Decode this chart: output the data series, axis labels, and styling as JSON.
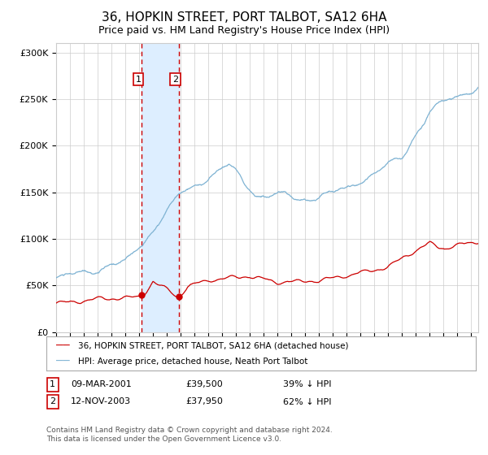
{
  "title": "36, HOPKIN STREET, PORT TALBOT, SA12 6HA",
  "subtitle": "Price paid vs. HM Land Registry's House Price Index (HPI)",
  "title_fontsize": 11,
  "subtitle_fontsize": 9,
  "hpi_color": "#7fb3d3",
  "price_color": "#cc0000",
  "marker_color": "#cc0000",
  "bg_color": "#ffffff",
  "grid_color": "#cccccc",
  "shade_color": "#ddeeff",
  "dashed_color": "#cc0000",
  "ylim": [
    0,
    310000
  ],
  "yticks": [
    0,
    50000,
    100000,
    150000,
    200000,
    250000,
    300000
  ],
  "ytick_labels": [
    "£0",
    "£50K",
    "£100K",
    "£150K",
    "£200K",
    "£250K",
    "£300K"
  ],
  "sale1_year": 2001.19,
  "sale1_price": 39500,
  "sale2_year": 2003.87,
  "sale2_price": 37950,
  "legend_line1": "36, HOPKIN STREET, PORT TALBOT, SA12 6HA (detached house)",
  "legend_line2": "HPI: Average price, detached house, Neath Port Talbot",
  "table_rows": [
    {
      "num": "1",
      "date": "09-MAR-2001",
      "price": "£39,500",
      "pct": "39% ↓ HPI"
    },
    {
      "num": "2",
      "date": "12-NOV-2003",
      "price": "£37,950",
      "pct": "62% ↓ HPI"
    }
  ],
  "footer": "Contains HM Land Registry data © Crown copyright and database right 2024.\nThis data is licensed under the Open Government Licence v3.0.",
  "xmin": 1995.0,
  "xmax": 2025.5
}
